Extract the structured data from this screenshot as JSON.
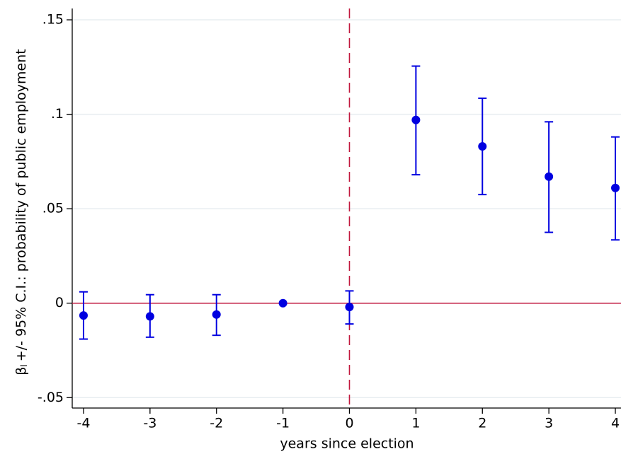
{
  "chart_data": {
    "type": "errorbar-scatter",
    "x_label": "years since election",
    "y_label_symbol": "β",
    "y_label_subscript": "l",
    "y_label": "+/- 95% C.I.: probability of public employment",
    "x": [
      -4,
      -3,
      -2,
      -1,
      0,
      1,
      2,
      3,
      4
    ],
    "values": [
      -0.0065,
      -0.007,
      -0.006,
      0,
      -0.002,
      0.097,
      0.083,
      0.067,
      0.061
    ],
    "lower": [
      -0.019,
      -0.018,
      -0.017,
      null,
      -0.011,
      0.068,
      0.0575,
      0.0375,
      0.0335
    ],
    "upper": [
      0.006,
      0.0045,
      0.0045,
      null,
      0.0065,
      0.1255,
      0.1085,
      0.096,
      0.088
    ],
    "color": "#0000e0",
    "ref_color": "#c0163c",
    "hline": 0,
    "vline": 0,
    "xlim": [
      -4.17,
      4.085
    ],
    "ylim": [
      -0.0555,
      0.156
    ],
    "xticks": [
      -4,
      -3,
      -2,
      -1,
      0,
      1,
      2,
      3,
      4
    ],
    "yticks": [
      {
        "value": -0.05,
        "label": "-.05"
      },
      0,
      {
        "value": 0.05,
        "label": ".05"
      },
      {
        "value": 0.1,
        "label": ".1"
      },
      {
        "value": 0.15,
        "label": ".15"
      }
    ],
    "grid": true
  }
}
